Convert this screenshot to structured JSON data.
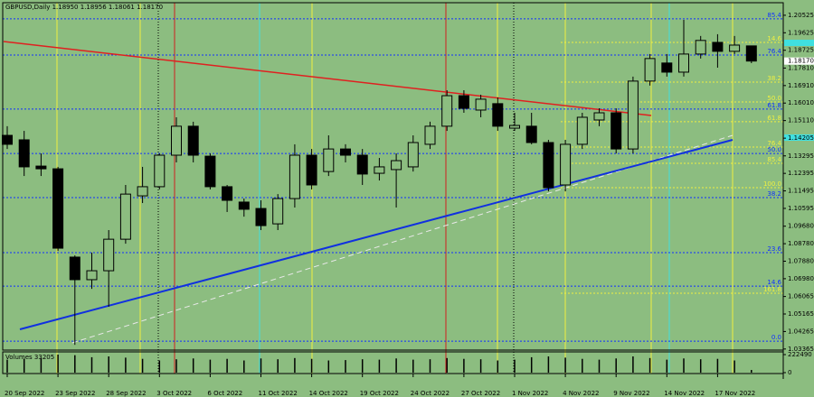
{
  "chart_data": {
    "type": "candlestick",
    "header": "GBPUSD,Daily  1.18950 1.18956 1.18061 1.18170",
    "categories": [
      "20 Sep 2022",
      null,
      null,
      "23 Sep 2022",
      null,
      null,
      "28 Sep 2022",
      null,
      null,
      "3 Oct 2022",
      null,
      null,
      "6 Oct 2022",
      null,
      null,
      "11 Oct 2022",
      null,
      null,
      "14 Oct 2022",
      null,
      null,
      "19 Oct 2022",
      null,
      null,
      "24 Oct 2022",
      null,
      null,
      "27 Oct 2022",
      null,
      null,
      "1 Nov 2022",
      null,
      null,
      "4 Nov 2022",
      null,
      null,
      "9 Nov 2022",
      null,
      null,
      "14 Nov 2022",
      null,
      null,
      "17 Nov 2022",
      null,
      null
    ],
    "open": [
      1.1435,
      1.1412,
      1.1277,
      1.1263,
      1.0809,
      1.0693,
      1.0739,
      1.0901,
      1.1124,
      1.1171,
      1.1333,
      1.1482,
      1.1328,
      1.1171,
      1.1092,
      1.1059,
      1.098,
      1.111,
      1.1333,
      1.1249,
      1.1365,
      1.1333,
      1.124,
      1.1259,
      1.1273,
      1.1389,
      1.1482,
      1.1639,
      1.1565,
      1.1598,
      1.1472,
      1.1482,
      1.1398,
      1.118,
      1.1389,
      1.1514,
      1.1551,
      1.1365,
      1.1714,
      1.1807,
      1.176,
      1.1853,
      1.1913,
      1.1867,
      1.1895
    ],
    "high": [
      1.1482,
      1.1458,
      1.1342,
      1.1273,
      1.0818,
      1.0832,
      1.0948,
      1.118,
      1.1273,
      1.1342,
      1.1528,
      1.1505,
      1.1342,
      1.118,
      1.111,
      1.1101,
      1.1133,
      1.1389,
      1.1365,
      1.1435,
      1.1389,
      1.1365,
      1.1319,
      1.1342,
      1.1435,
      1.1505,
      1.1667,
      1.1667,
      1.1644,
      1.163,
      1.1551,
      1.1551,
      1.1412,
      1.1412,
      1.1551,
      1.1574,
      1.1574,
      1.1737,
      1.1853,
      1.1853,
      1.2029,
      1.1946,
      1.1955,
      1.1946,
      1.18956
    ],
    "low": [
      1.1365,
      1.1226,
      1.1226,
      1.0841,
      1.0358,
      1.0646,
      1.0554,
      1.0878,
      1.1087,
      1.1157,
      1.1296,
      1.1296,
      1.1157,
      1.1041,
      1.1017,
      1.0948,
      1.0948,
      1.1064,
      1.1157,
      1.1226,
      1.1296,
      1.118,
      1.1203,
      1.1064,
      1.1249,
      1.1365,
      1.1458,
      1.1551,
      1.1528,
      1.1458,
      1.1458,
      1.1389,
      1.1147,
      1.1147,
      1.1365,
      1.1482,
      1.1342,
      1.1342,
      1.1691,
      1.1737,
      1.1737,
      1.183,
      1.1783,
      1.1853,
      1.18061
    ],
    "close": [
      1.1389,
      1.1273,
      1.1263,
      1.0855,
      1.0693,
      1.0739,
      1.0901,
      1.1133,
      1.1171,
      1.1333,
      1.1482,
      1.1333,
      1.1171,
      1.1101,
      1.1055,
      1.0971,
      1.111,
      1.1333,
      1.118,
      1.1365,
      1.1333,
      1.1236,
      1.1273,
      1.1305,
      1.1398,
      1.1482,
      1.1639,
      1.1574,
      1.1621,
      1.1482,
      1.1486,
      1.1398,
      1.1166,
      1.1389,
      1.1528,
      1.1551,
      1.1365,
      1.1714,
      1.183,
      1.176,
      1.1853,
      1.1923,
      1.1867,
      1.1899,
      1.1817
    ],
    "bull_color": "#8cbd80",
    "bear_color": "#000000",
    "background": "#8cbd80",
    "ylim": [
      1.0331,
      1.2117
    ],
    "yticks": [
      1.20525,
      1.19625,
      1.18725,
      {
        "value": 1.1781,
        "label": "1.17810"
      },
      {
        "value": 1.1691,
        "label": "1.16910"
      },
      {
        "value": 1.1601,
        "label": "1.16010"
      },
      {
        "value": 1.1511,
        "label": "1.15110"
      },
      1.14205,
      1.13295,
      1.12395,
      1.11495,
      1.10595,
      {
        "value": 1.0968,
        "label": "1.09680"
      },
      {
        "value": 1.0878,
        "label": "1.08780"
      },
      {
        "value": 1.0788,
        "label": "1.07880"
      },
      {
        "value": 1.0698,
        "label": "1.06980"
      },
      1.06065,
      1.05165,
      1.04265,
      1.03365
    ],
    "current_price": {
      "value": 1.1817,
      "label": "1.18170"
    },
    "fib_levels": [
      {
        "label": "0.0",
        "price": 1.0377,
        "color": "#1030ff"
      },
      {
        "label": "14.6",
        "price": 1.066,
        "color": "#1030ff"
      },
      {
        "label": "23.6",
        "price": 1.0832,
        "color": "#1030ff"
      },
      {
        "label": "38.2",
        "price": 1.1115,
        "color": "#1030ff"
      },
      {
        "label": "50.0",
        "price": 1.1342,
        "color": "#1030ff"
      },
      {
        "label": "61.8",
        "price": 1.157,
        "color": "#1030ff"
      },
      {
        "label": "76.4",
        "price": 1.1848,
        "color": "#1030ff"
      },
      {
        "label": "85.4",
        "price": 1.2034,
        "color": "#1030ff"
      },
      {
        "label": "14.6",
        "price": 1.1913,
        "color": "#f0f040"
      },
      {
        "label": "38.2",
        "price": 1.1709,
        "color": "#f0f040"
      },
      {
        "label": "50.0",
        "price": 1.1607,
        "color": "#f0f040"
      },
      {
        "label": "61.8",
        "price": 1.1505,
        "color": "#f0f040"
      },
      {
        "label": "76.4",
        "price": 1.1375,
        "color": "#f0f040"
      },
      {
        "label": "85.4",
        "price": 1.1291,
        "color": "#f0f040"
      },
      {
        "label": "100.0",
        "price": 1.1166,
        "color": "#f0f040"
      },
      {
        "label": "161.8",
        "price": 1.0623,
        "color": "#f0f040"
      }
    ],
    "volume_label": "Volumes 33205",
    "volumes": [
      160000,
      170000,
      180000,
      222490,
      215000,
      190000,
      200000,
      185000,
      170000,
      150000,
      165000,
      175000,
      160000,
      170000,
      150000,
      175000,
      165000,
      180000,
      170000,
      150000,
      155000,
      165000,
      160000,
      175000,
      160000,
      165000,
      180000,
      170000,
      165000,
      150000,
      160000,
      190000,
      200000,
      185000,
      170000,
      160000,
      175000,
      200000,
      180000,
      160000,
      175000,
      165000,
      170000,
      150000,
      33205
    ],
    "vlim": [
      0,
      222490
    ],
    "vticks": [
      0,
      222490
    ]
  }
}
